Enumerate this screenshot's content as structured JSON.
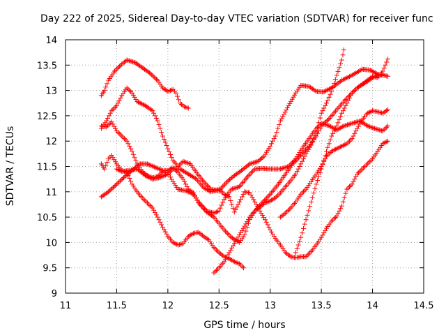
{
  "chart_data": {
    "type": "scatter",
    "title": "Day 222 of 2025, Sidereal Day-to-day VTEC variation (SDTVAR) for receiver func",
    "xlabel": "GPS time / hours",
    "ylabel": "SDTVAR / TECUs",
    "xlim": [
      11,
      14.5
    ],
    "ylim": [
      9,
      14
    ],
    "xticks": [
      11,
      11.5,
      12,
      12.5,
      13,
      13.5,
      14,
      14.5
    ],
    "yticks": [
      9,
      9.5,
      10,
      10.5,
      11,
      11.5,
      12,
      12.5,
      13,
      13.5,
      14
    ],
    "xtick_labels": [
      "11",
      "11.5",
      "12",
      "12.5",
      "13",
      "13.5",
      "14",
      "14.5"
    ],
    "ytick_labels": [
      "9",
      "9.5",
      "10",
      "10.5",
      "11",
      "11.5",
      "12",
      "12.5",
      "13",
      "13.5",
      "14"
    ],
    "grid": true,
    "marker": "+",
    "marker_color": "#ff0000",
    "series": [
      {
        "points": [
          [
            11.35,
            12.9
          ],
          [
            11.38,
            13.0
          ],
          [
            11.42,
            13.2
          ],
          [
            11.48,
            13.38
          ],
          [
            11.55,
            13.52
          ],
          [
            11.6,
            13.6
          ],
          [
            11.68,
            13.55
          ],
          [
            11.75,
            13.45
          ],
          [
            11.82,
            13.35
          ],
          [
            11.9,
            13.2
          ],
          [
            11.95,
            13.05
          ],
          [
            12.0,
            12.98
          ],
          [
            12.05,
            13.02
          ],
          [
            12.08,
            12.95
          ],
          [
            12.12,
            12.75
          ],
          [
            12.16,
            12.68
          ],
          [
            12.2,
            12.65
          ]
        ]
      },
      {
        "points": [
          [
            11.35,
            12.25
          ],
          [
            11.4,
            12.4
          ],
          [
            11.45,
            12.6
          ],
          [
            11.5,
            12.7
          ],
          [
            11.55,
            12.9
          ],
          [
            11.6,
            13.05
          ],
          [
            11.65,
            12.95
          ],
          [
            11.7,
            12.78
          ],
          [
            11.78,
            12.7
          ],
          [
            11.85,
            12.6
          ],
          [
            11.9,
            12.4
          ],
          [
            11.95,
            12.1
          ],
          [
            12.0,
            11.85
          ],
          [
            12.05,
            11.62
          ],
          [
            12.1,
            11.5
          ],
          [
            12.15,
            11.6
          ],
          [
            12.22,
            11.55
          ],
          [
            12.28,
            11.38
          ],
          [
            12.35,
            11.2
          ],
          [
            12.42,
            11.05
          ],
          [
            12.5,
            11.02
          ],
          [
            12.58,
            11.2
          ],
          [
            12.65,
            11.32
          ],
          [
            12.72,
            11.42
          ],
          [
            12.8,
            11.55
          ],
          [
            12.88,
            11.6
          ],
          [
            12.94,
            11.7
          ],
          [
            13.0,
            11.9
          ],
          [
            13.05,
            12.1
          ],
          [
            13.1,
            12.4
          ],
          [
            13.18,
            12.7
          ],
          [
            13.25,
            12.95
          ],
          [
            13.3,
            13.1
          ],
          [
            13.38,
            13.08
          ],
          [
            13.45,
            12.98
          ],
          [
            13.52,
            12.97
          ],
          [
            13.6,
            13.05
          ],
          [
            13.7,
            13.2
          ],
          [
            13.8,
            13.3
          ],
          [
            13.9,
            13.42
          ],
          [
            13.98,
            13.4
          ],
          [
            14.05,
            13.32
          ],
          [
            14.1,
            13.3
          ],
          [
            14.15,
            13.28
          ]
        ]
      },
      {
        "points": [
          [
            11.35,
            12.3
          ],
          [
            11.4,
            12.28
          ],
          [
            11.45,
            12.38
          ],
          [
            11.5,
            12.2
          ],
          [
            11.55,
            12.1
          ],
          [
            11.6,
            12.0
          ],
          [
            11.65,
            11.8
          ],
          [
            11.7,
            11.55
          ],
          [
            11.75,
            11.4
          ],
          [
            11.8,
            11.32
          ],
          [
            11.85,
            11.28
          ],
          [
            11.9,
            11.3
          ],
          [
            11.95,
            11.4
          ],
          [
            12.0,
            11.38
          ],
          [
            12.05,
            11.2
          ],
          [
            12.1,
            11.05
          ],
          [
            12.18,
            11.02
          ],
          [
            12.25,
            10.95
          ],
          [
            12.3,
            10.8
          ],
          [
            12.38,
            10.62
          ],
          [
            12.45,
            10.58
          ],
          [
            12.5,
            10.62
          ],
          [
            12.55,
            10.85
          ],
          [
            12.62,
            11.05
          ],
          [
            12.7,
            11.1
          ],
          [
            12.78,
            11.3
          ],
          [
            12.85,
            11.45
          ],
          [
            12.92,
            11.46
          ],
          [
            13.0,
            11.45
          ],
          [
            13.1,
            11.45
          ],
          [
            13.18,
            11.5
          ],
          [
            13.25,
            11.65
          ],
          [
            13.3,
            11.82
          ],
          [
            13.38,
            12.05
          ],
          [
            13.45,
            12.25
          ],
          [
            13.5,
            12.35
          ],
          [
            13.58,
            12.3
          ],
          [
            13.65,
            12.22
          ],
          [
            13.72,
            12.3
          ],
          [
            13.8,
            12.35
          ],
          [
            13.88,
            12.4
          ],
          [
            13.95,
            12.3
          ],
          [
            14.02,
            12.25
          ],
          [
            14.1,
            12.2
          ],
          [
            14.15,
            12.3
          ]
        ]
      },
      {
        "points": [
          [
            11.35,
            10.9
          ],
          [
            11.42,
            11.0
          ],
          [
            11.5,
            11.15
          ],
          [
            11.58,
            11.3
          ],
          [
            11.65,
            11.42
          ],
          [
            11.72,
            11.55
          ],
          [
            11.8,
            11.55
          ],
          [
            11.88,
            11.48
          ],
          [
            11.95,
            11.42
          ],
          [
            12.0,
            11.42
          ],
          [
            12.05,
            11.48
          ],
          [
            12.1,
            11.38
          ],
          [
            12.15,
            11.25
          ],
          [
            12.2,
            11.05
          ],
          [
            12.25,
            10.98
          ],
          [
            12.3,
            10.78
          ],
          [
            12.38,
            10.6
          ],
          [
            12.45,
            10.5
          ],
          [
            12.55,
            10.25
          ],
          [
            12.62,
            10.1
          ],
          [
            12.7,
            10.0
          ],
          [
            12.75,
            10.15
          ],
          [
            12.8,
            10.45
          ],
          [
            12.85,
            10.62
          ],
          [
            12.92,
            10.78
          ],
          [
            13.0,
            10.95
          ],
          [
            13.08,
            11.15
          ],
          [
            13.15,
            11.35
          ],
          [
            13.22,
            11.55
          ],
          [
            13.3,
            11.72
          ],
          [
            13.38,
            11.9
          ],
          [
            13.45,
            12.1
          ],
          [
            13.5,
            12.3
          ],
          [
            13.58,
            12.45
          ],
          [
            13.65,
            12.62
          ],
          [
            13.75,
            12.85
          ],
          [
            13.85,
            13.05
          ],
          [
            13.92,
            13.15
          ],
          [
            14.0,
            13.28
          ],
          [
            14.05,
            13.25
          ],
          [
            14.1,
            13.38
          ],
          [
            14.15,
            13.62
          ]
        ]
      },
      {
        "points": [
          [
            11.35,
            11.55
          ],
          [
            11.38,
            11.45
          ],
          [
            11.42,
            11.65
          ],
          [
            11.45,
            11.72
          ],
          [
            11.5,
            11.55
          ],
          [
            11.55,
            11.42
          ],
          [
            11.6,
            11.38
          ],
          [
            11.65,
            11.15
          ],
          [
            11.7,
            11.0
          ],
          [
            11.75,
            10.88
          ],
          [
            11.8,
            10.78
          ],
          [
            11.85,
            10.68
          ],
          [
            11.9,
            10.5
          ],
          [
            11.95,
            10.3
          ],
          [
            12.0,
            10.12
          ],
          [
            12.05,
            10.0
          ],
          [
            12.1,
            9.95
          ],
          [
            12.15,
            9.98
          ],
          [
            12.2,
            10.12
          ],
          [
            12.25,
            10.18
          ],
          [
            12.3,
            10.2
          ],
          [
            12.35,
            10.12
          ],
          [
            12.4,
            10.05
          ],
          [
            12.45,
            9.9
          ],
          [
            12.5,
            9.8
          ],
          [
            12.55,
            9.72
          ],
          [
            12.6,
            9.68
          ],
          [
            12.65,
            9.62
          ],
          [
            12.7,
            9.58
          ],
          [
            12.74,
            9.5
          ]
        ]
      },
      {
        "points": [
          [
            11.5,
            11.45
          ],
          [
            11.55,
            11.4
          ],
          [
            11.62,
            11.42
          ],
          [
            11.7,
            11.45
          ],
          [
            11.78,
            11.32
          ],
          [
            11.85,
            11.25
          ],
          [
            11.92,
            11.28
          ],
          [
            12.0,
            11.35
          ],
          [
            12.05,
            11.45
          ],
          [
            12.12,
            11.45
          ],
          [
            12.2,
            11.35
          ],
          [
            12.28,
            11.25
          ],
          [
            12.35,
            11.08
          ],
          [
            12.42,
            11.0
          ],
          [
            12.5,
            11.05
          ],
          [
            12.55,
            10.95
          ],
          [
            12.6,
            10.9
          ],
          [
            12.65,
            10.6
          ],
          [
            12.7,
            10.8
          ],
          [
            12.75,
            11.0
          ],
          [
            12.8,
            10.98
          ],
          [
            12.85,
            10.8
          ],
          [
            12.9,
            10.62
          ],
          [
            12.95,
            10.45
          ],
          [
            13.0,
            10.25
          ],
          [
            13.05,
            10.08
          ],
          [
            13.1,
            9.95
          ],
          [
            13.15,
            9.8
          ],
          [
            13.2,
            9.72
          ],
          [
            13.25,
            9.7
          ],
          [
            13.3,
            9.72
          ],
          [
            13.35,
            9.72
          ],
          [
            13.4,
            9.82
          ],
          [
            13.45,
            9.95
          ],
          [
            13.5,
            10.1
          ],
          [
            13.55,
            10.28
          ],
          [
            13.6,
            10.42
          ],
          [
            13.65,
            10.52
          ],
          [
            13.7,
            10.72
          ],
          [
            13.75,
            11.05
          ],
          [
            13.8,
            11.15
          ],
          [
            13.85,
            11.35
          ],
          [
            13.9,
            11.45
          ],
          [
            13.95,
            11.55
          ],
          [
            14.0,
            11.65
          ],
          [
            14.05,
            11.8
          ],
          [
            14.1,
            11.95
          ],
          [
            14.15,
            12.0
          ]
        ]
      },
      {
        "points": [
          [
            12.45,
            9.4
          ],
          [
            12.5,
            9.5
          ],
          [
            12.55,
            9.62
          ],
          [
            12.6,
            9.8
          ],
          [
            12.65,
            9.98
          ],
          [
            12.7,
            10.15
          ],
          [
            12.75,
            10.32
          ],
          [
            12.8,
            10.5
          ],
          [
            12.85,
            10.62
          ],
          [
            12.9,
            10.7
          ],
          [
            12.95,
            10.78
          ],
          [
            13.0,
            10.82
          ],
          [
            13.05,
            10.88
          ],
          [
            13.1,
            10.98
          ],
          [
            13.15,
            11.1
          ],
          [
            13.2,
            11.22
          ],
          [
            13.25,
            11.35
          ],
          [
            13.3,
            11.55
          ],
          [
            13.35,
            11.75
          ],
          [
            13.4,
            11.92
          ],
          [
            13.45,
            12.18
          ],
          [
            13.5,
            12.55
          ],
          [
            13.55,
            12.75
          ],
          [
            13.6,
            12.98
          ],
          [
            13.65,
            13.3
          ],
          [
            13.7,
            13.6
          ],
          [
            13.72,
            13.8
          ]
        ]
      },
      {
        "points": [
          [
            13.1,
            10.5
          ],
          [
            13.15,
            10.58
          ],
          [
            13.2,
            10.68
          ],
          [
            13.25,
            10.8
          ],
          [
            13.3,
            10.95
          ],
          [
            13.35,
            11.05
          ],
          [
            13.4,
            11.2
          ],
          [
            13.45,
            11.35
          ],
          [
            13.5,
            11.5
          ],
          [
            13.55,
            11.7
          ],
          [
            13.6,
            11.8
          ],
          [
            13.65,
            11.85
          ],
          [
            13.7,
            11.9
          ],
          [
            13.75,
            11.95
          ],
          [
            13.8,
            12.05
          ],
          [
            13.85,
            12.25
          ],
          [
            13.9,
            12.42
          ],
          [
            13.95,
            12.55
          ],
          [
            14.0,
            12.6
          ],
          [
            14.05,
            12.58
          ],
          [
            14.1,
            12.55
          ],
          [
            14.15,
            12.62
          ]
        ]
      },
      {
        "points": [
          [
            13.25,
            9.8
          ],
          [
            13.3,
            10.1
          ],
          [
            13.35,
            10.45
          ],
          [
            13.4,
            10.8
          ],
          [
            13.45,
            11.15
          ],
          [
            13.5,
            11.45
          ],
          [
            13.55,
            11.8
          ],
          [
            13.6,
            12.1
          ],
          [
            13.65,
            12.3
          ],
          [
            13.7,
            12.55
          ],
          [
            13.75,
            12.75
          ],
          [
            13.8,
            12.95
          ],
          [
            13.85,
            13.05
          ],
          [
            13.9,
            13.12
          ],
          [
            13.95,
            13.18
          ],
          [
            14.0,
            13.25
          ],
          [
            14.05,
            13.3
          ],
          [
            14.1,
            13.32
          ]
        ]
      }
    ]
  }
}
